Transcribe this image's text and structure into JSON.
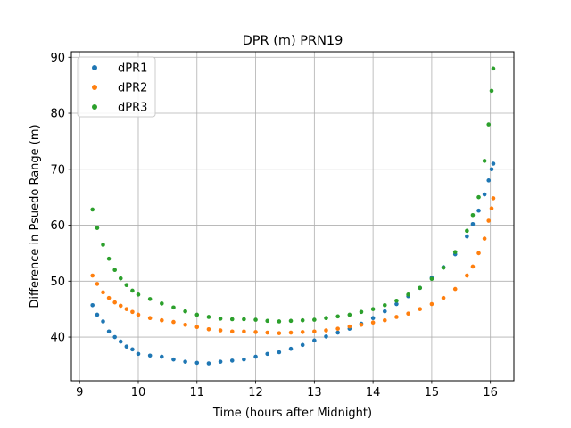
{
  "chart_data": {
    "type": "scatter",
    "title": "DPR (m) PRN19",
    "xlabel": "Time (hours after Midnight)",
    "ylabel": "Difference in Psuedo Range (m)",
    "xlim": [
      8.86,
      16.4
    ],
    "ylim": [
      32.2,
      91.0
    ],
    "xticks": [
      9,
      10,
      11,
      12,
      13,
      14,
      15,
      16
    ],
    "yticks": [
      40,
      50,
      60,
      70,
      80,
      90
    ],
    "grid": true,
    "legend_position": "top-left",
    "series": [
      {
        "name": "dPR1",
        "color": "#1f77b4",
        "points": [
          [
            9.22,
            45.7
          ],
          [
            9.3,
            44.0
          ],
          [
            9.4,
            42.8
          ],
          [
            9.5,
            41.0
          ],
          [
            9.6,
            40.0
          ],
          [
            9.7,
            39.2
          ],
          [
            9.8,
            38.3
          ],
          [
            9.9,
            37.8
          ],
          [
            10.0,
            37.0
          ],
          [
            10.2,
            36.7
          ],
          [
            10.4,
            36.5
          ],
          [
            10.6,
            36.0
          ],
          [
            10.8,
            35.6
          ],
          [
            11.0,
            35.4
          ],
          [
            11.2,
            35.3
          ],
          [
            11.4,
            35.6
          ],
          [
            11.6,
            35.8
          ],
          [
            11.8,
            36.0
          ],
          [
            12.0,
            36.5
          ],
          [
            12.2,
            37.0
          ],
          [
            12.4,
            37.3
          ],
          [
            12.6,
            37.9
          ],
          [
            12.8,
            38.6
          ],
          [
            13.0,
            39.4
          ],
          [
            13.2,
            40.1
          ],
          [
            13.4,
            40.8
          ],
          [
            13.6,
            41.5
          ],
          [
            13.8,
            42.4
          ],
          [
            14.0,
            43.4
          ],
          [
            14.2,
            44.6
          ],
          [
            14.4,
            45.9
          ],
          [
            14.6,
            47.3
          ],
          [
            14.8,
            48.8
          ],
          [
            15.0,
            50.6
          ],
          [
            15.2,
            52.5
          ],
          [
            15.4,
            54.8
          ],
          [
            15.6,
            58.0
          ],
          [
            15.7,
            60.2
          ],
          [
            15.8,
            62.6
          ],
          [
            15.9,
            65.5
          ],
          [
            15.97,
            68.0
          ],
          [
            16.02,
            70.0
          ],
          [
            16.05,
            71.0
          ]
        ]
      },
      {
        "name": "dPR2",
        "color": "#ff7f0e",
        "points": [
          [
            9.22,
            51.0
          ],
          [
            9.3,
            49.5
          ],
          [
            9.4,
            48.0
          ],
          [
            9.5,
            47.0
          ],
          [
            9.6,
            46.2
          ],
          [
            9.7,
            45.6
          ],
          [
            9.8,
            45.0
          ],
          [
            9.9,
            44.5
          ],
          [
            10.0,
            44.0
          ],
          [
            10.2,
            43.4
          ],
          [
            10.4,
            43.0
          ],
          [
            10.6,
            42.7
          ],
          [
            10.8,
            42.2
          ],
          [
            11.0,
            41.8
          ],
          [
            11.2,
            41.4
          ],
          [
            11.4,
            41.2
          ],
          [
            11.6,
            41.0
          ],
          [
            11.8,
            41.0
          ],
          [
            12.0,
            40.9
          ],
          [
            12.2,
            40.8
          ],
          [
            12.4,
            40.7
          ],
          [
            12.6,
            40.8
          ],
          [
            12.8,
            40.9
          ],
          [
            13.0,
            41.0
          ],
          [
            13.2,
            41.2
          ],
          [
            13.4,
            41.5
          ],
          [
            13.6,
            41.9
          ],
          [
            13.8,
            42.2
          ],
          [
            14.0,
            42.6
          ],
          [
            14.2,
            43.0
          ],
          [
            14.4,
            43.6
          ],
          [
            14.6,
            44.2
          ],
          [
            14.8,
            45.0
          ],
          [
            15.0,
            45.9
          ],
          [
            15.2,
            47.0
          ],
          [
            15.4,
            48.6
          ],
          [
            15.6,
            51.0
          ],
          [
            15.7,
            52.6
          ],
          [
            15.8,
            55.0
          ],
          [
            15.9,
            57.6
          ],
          [
            15.97,
            60.8
          ],
          [
            16.02,
            63.0
          ],
          [
            16.05,
            64.8
          ]
        ]
      },
      {
        "name": "dPR3",
        "color": "#2ca02c",
        "points": [
          [
            9.22,
            62.8
          ],
          [
            9.3,
            59.5
          ],
          [
            9.4,
            56.5
          ],
          [
            9.5,
            54.0
          ],
          [
            9.6,
            52.0
          ],
          [
            9.7,
            50.5
          ],
          [
            9.8,
            49.3
          ],
          [
            9.9,
            48.3
          ],
          [
            10.0,
            47.6
          ],
          [
            10.2,
            46.8
          ],
          [
            10.4,
            46.0
          ],
          [
            10.6,
            45.3
          ],
          [
            10.8,
            44.6
          ],
          [
            11.0,
            44.0
          ],
          [
            11.2,
            43.6
          ],
          [
            11.4,
            43.3
          ],
          [
            11.6,
            43.2
          ],
          [
            11.8,
            43.2
          ],
          [
            12.0,
            43.1
          ],
          [
            12.2,
            42.9
          ],
          [
            12.4,
            42.8
          ],
          [
            12.6,
            42.9
          ],
          [
            12.8,
            43.0
          ],
          [
            13.0,
            43.1
          ],
          [
            13.2,
            43.4
          ],
          [
            13.4,
            43.7
          ],
          [
            13.6,
            44.0
          ],
          [
            13.8,
            44.5
          ],
          [
            14.0,
            45.0
          ],
          [
            14.2,
            45.7
          ],
          [
            14.4,
            46.5
          ],
          [
            14.6,
            47.6
          ],
          [
            14.8,
            48.8
          ],
          [
            15.0,
            50.4
          ],
          [
            15.2,
            52.4
          ],
          [
            15.4,
            55.2
          ],
          [
            15.6,
            59.0
          ],
          [
            15.7,
            61.8
          ],
          [
            15.8,
            65.0
          ],
          [
            15.9,
            71.5
          ],
          [
            15.97,
            78.0
          ],
          [
            16.02,
            84.0
          ],
          [
            16.05,
            88.0
          ]
        ]
      }
    ]
  }
}
